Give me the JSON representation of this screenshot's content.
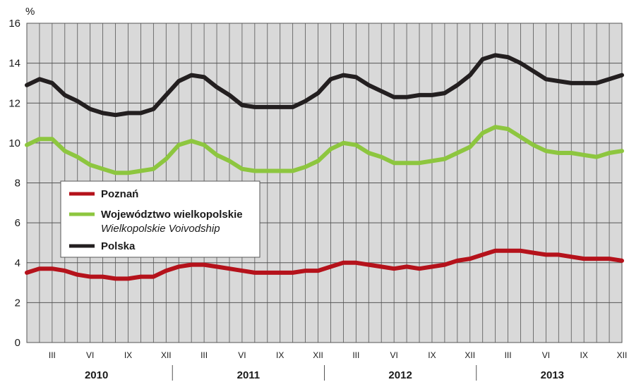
{
  "chart_data": {
    "type": "line",
    "y_unit": "%",
    "ylim": [
      0,
      16
    ],
    "yticks": [
      0,
      2,
      4,
      6,
      8,
      10,
      12,
      14,
      16
    ],
    "grid": true,
    "legend_position": "left-middle",
    "months_per_year": 12,
    "month_tick_labels": [
      {
        "month_index": 2,
        "label": "III"
      },
      {
        "month_index": 5,
        "label": "VI"
      },
      {
        "month_index": 8,
        "label": "IX"
      },
      {
        "month_index": 11,
        "label": "XII"
      },
      {
        "month_index": 14,
        "label": "III"
      },
      {
        "month_index": 17,
        "label": "VI"
      },
      {
        "month_index": 20,
        "label": "IX"
      },
      {
        "month_index": 23,
        "label": "XII"
      },
      {
        "month_index": 26,
        "label": "III"
      },
      {
        "month_index": 29,
        "label": "VI"
      },
      {
        "month_index": 32,
        "label": "IX"
      },
      {
        "month_index": 35,
        "label": "XII"
      },
      {
        "month_index": 38,
        "label": "III"
      },
      {
        "month_index": 41,
        "label": "VI"
      },
      {
        "month_index": 44,
        "label": "IX"
      },
      {
        "month_index": 47,
        "label": "XII"
      }
    ],
    "years": [
      "2010",
      "2011",
      "2012",
      "2013"
    ],
    "series": [
      {
        "name": "Poznań",
        "color": "#b5121b",
        "values": [
          3.5,
          3.7,
          3.7,
          3.6,
          3.4,
          3.3,
          3.3,
          3.2,
          3.2,
          3.3,
          3.3,
          3.6,
          3.8,
          3.9,
          3.9,
          3.8,
          3.7,
          3.6,
          3.5,
          3.5,
          3.5,
          3.5,
          3.6,
          3.6,
          3.8,
          4.0,
          4.0,
          3.9,
          3.8,
          3.7,
          3.8,
          3.7,
          3.8,
          3.9,
          4.1,
          4.2,
          4.4,
          4.6,
          4.6,
          4.6,
          4.5,
          4.4,
          4.4,
          4.3,
          4.2,
          4.2,
          4.2,
          4.1
        ]
      },
      {
        "name": "Województwo wielkopolskie",
        "name_en": "Wielkopolskie Voivodship",
        "color": "#8dc63f",
        "values": [
          9.9,
          10.2,
          10.2,
          9.6,
          9.3,
          8.9,
          8.7,
          8.5,
          8.5,
          8.6,
          8.7,
          9.2,
          9.9,
          10.1,
          9.9,
          9.4,
          9.1,
          8.7,
          8.6,
          8.6,
          8.6,
          8.6,
          8.8,
          9.1,
          9.7,
          10.0,
          9.9,
          9.5,
          9.3,
          9.0,
          9.0,
          9.0,
          9.1,
          9.2,
          9.5,
          9.8,
          10.5,
          10.8,
          10.7,
          10.3,
          9.9,
          9.6,
          9.5,
          9.5,
          9.4,
          9.3,
          9.5,
          9.6
        ]
      },
      {
        "name": "Polska",
        "color": "#231f20",
        "values": [
          12.9,
          13.2,
          13.0,
          12.4,
          12.1,
          11.7,
          11.5,
          11.4,
          11.5,
          11.5,
          11.7,
          12.4,
          13.1,
          13.4,
          13.3,
          12.8,
          12.4,
          11.9,
          11.8,
          11.8,
          11.8,
          11.8,
          12.1,
          12.5,
          13.2,
          13.4,
          13.3,
          12.9,
          12.6,
          12.3,
          12.3,
          12.4,
          12.4,
          12.5,
          12.9,
          13.4,
          14.2,
          14.4,
          14.3,
          14.0,
          13.6,
          13.2,
          13.1,
          13.0,
          13.0,
          13.0,
          13.2,
          13.4
        ]
      }
    ]
  }
}
